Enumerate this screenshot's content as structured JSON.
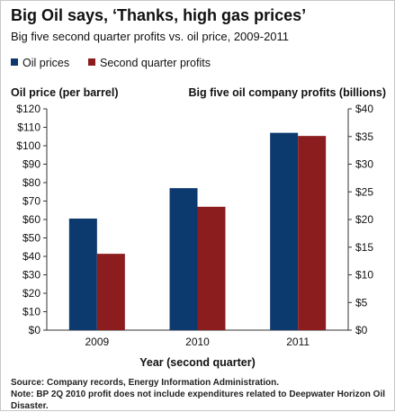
{
  "title": "Big Oil says, ‘Thanks, high gas prices’",
  "subtitle": "Big five second quarter profits vs. oil price, 2009-2011",
  "footer": {
    "source": "Source: Company records, Energy Information Administration.",
    "note": "Note: BP 2Q 2010 profit does not include expenditures related to Deepwater Horizon Oil Disaster."
  },
  "chart_data": {
    "type": "bar",
    "title": "Big Oil says, ‘Thanks, high gas prices’",
    "subtitle": "Big five second quarter profits vs. oil price, 2009-2011",
    "xlabel": "Year (second quarter)",
    "ylabel_left": "Oil price (per barrel)",
    "ylabel_right": "Big five oil company profits (billions)",
    "categories": [
      "2009",
      "2010",
      "2011"
    ],
    "series": [
      {
        "name": "Oil prices",
        "axis": "left",
        "color": "#0d3a6e",
        "values": [
          60.5,
          77,
          107
        ]
      },
      {
        "name": "Second quarter profits",
        "axis": "right",
        "color": "#8b1d1f",
        "values": [
          13.8,
          22.3,
          35.1
        ]
      }
    ],
    "ylim_left": [
      0,
      120
    ],
    "yticks_left": [
      "$0",
      "$10",
      "$20",
      "$30",
      "$40",
      "$50",
      "$60",
      "$70",
      "$80",
      "$90",
      "$100",
      "$110",
      "$120"
    ],
    "ylim_right": [
      0,
      40
    ],
    "yticks_right": [
      "$0",
      "$5",
      "$10",
      "$15",
      "$20",
      "$25",
      "$30",
      "$35",
      "$40"
    ],
    "grid": false,
    "legend_position": "top-left"
  }
}
